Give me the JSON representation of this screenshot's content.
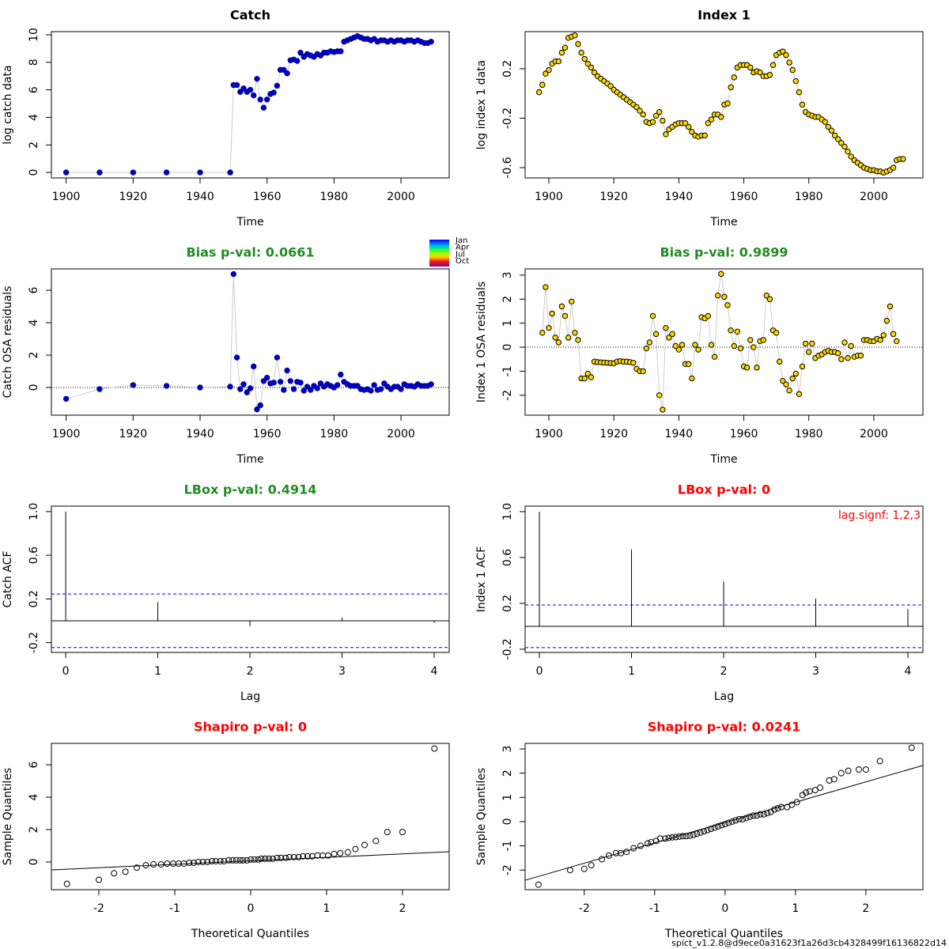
{
  "chart_data": [
    {
      "type": "line",
      "title": "Catch",
      "xlabel": "Time",
      "ylabel": "log catch data",
      "color": "#0000cd",
      "edge_color": "#00008b",
      "line_color": "#cccccc",
      "x": [
        1900,
        1910,
        1920,
        1930,
        1940,
        1949,
        1950,
        1951,
        1952,
        1953,
        1954,
        1955,
        1956,
        1957,
        1958,
        1959,
        1960,
        1961,
        1962,
        1963,
        1964,
        1965,
        1966,
        1967,
        1968,
        1969,
        1970,
        1971,
        1972,
        1973,
        1974,
        1975,
        1976,
        1977,
        1978,
        1979,
        1980,
        1981,
        1982,
        1983,
        1984,
        1985,
        1986,
        1987,
        1988,
        1989,
        1990,
        1991,
        1992,
        1993,
        1994,
        1995,
        1996,
        1997,
        1998,
        1999,
        2000,
        2001,
        2002,
        2003,
        2004,
        2005,
        2006,
        2007,
        2008,
        2009
      ],
      "values": [
        0,
        0,
        0,
        0,
        0,
        0,
        6.35,
        6.35,
        5.85,
        6.1,
        5.85,
        6.0,
        5.6,
        6.8,
        5.3,
        4.7,
        5.3,
        5.7,
        5.8,
        6.3,
        7.45,
        7.45,
        7.2,
        8.15,
        8.2,
        8.1,
        8.7,
        8.4,
        8.6,
        8.5,
        8.4,
        8.6,
        8.5,
        8.7,
        8.7,
        8.8,
        8.75,
        8.8,
        8.8,
        9.5,
        9.6,
        9.7,
        9.8,
        9.9,
        9.8,
        9.7,
        9.7,
        9.6,
        9.7,
        9.5,
        9.6,
        9.6,
        9.5,
        9.6,
        9.5,
        9.6,
        9.6,
        9.5,
        9.6,
        9.6,
        9.5,
        9.6,
        9.5,
        9.4,
        9.4,
        9.5
      ],
      "xlim": [
        1895.6,
        2014.4
      ],
      "ylim": [
        -0.4,
        10.23
      ],
      "xticks": [
        1900,
        1920,
        1940,
        1960,
        1980,
        2000
      ],
      "yticks": [
        0,
        2,
        4,
        6,
        8,
        10
      ]
    },
    {
      "type": "line",
      "title": "Index 1",
      "xlabel": "Time",
      "ylabel": "log index 1 data",
      "color": "#ffd700",
      "edge_color": "#000000",
      "line_color": "#cccccc",
      "x": [
        1897,
        1898,
        1899,
        1900,
        1901,
        1902,
        1903,
        1904,
        1905,
        1906,
        1907,
        1908,
        1909,
        1910,
        1911,
        1912,
        1913,
        1914,
        1915,
        1916,
        1917,
        1918,
        1919,
        1920,
        1921,
        1922,
        1923,
        1924,
        1925,
        1926,
        1927,
        1928,
        1929,
        1930,
        1931,
        1932,
        1933,
        1934,
        1935,
        1936,
        1937,
        1938,
        1939,
        1940,
        1941,
        1942,
        1943,
        1944,
        1945,
        1946,
        1947,
        1948,
        1949,
        1950,
        1951,
        1952,
        1953,
        1954,
        1955,
        1956,
        1957,
        1958,
        1959,
        1960,
        1961,
        1962,
        1963,
        1964,
        1965,
        1966,
        1967,
        1968,
        1969,
        1970,
        1971,
        1972,
        1973,
        1974,
        1975,
        1976,
        1977,
        1978,
        1979,
        1980,
        1981,
        1982,
        1983,
        1984,
        1985,
        1986,
        1987,
        1988,
        1989,
        1990,
        1991,
        1992,
        1993,
        1994,
        1995,
        1996,
        1997,
        1998,
        1999,
        2000,
        2001,
        2002,
        2003,
        2004,
        2005,
        2006,
        2007,
        2008,
        2009
      ],
      "values": [
        0.01,
        0.07,
        0.16,
        0.19,
        0.24,
        0.26,
        0.26,
        0.33,
        0.37,
        0.45,
        0.46,
        0.47,
        0.4,
        0.33,
        0.28,
        0.24,
        0.21,
        0.17,
        0.14,
        0.12,
        0.1,
        0.08,
        0.06,
        0.03,
        0.01,
        -0.01,
        -0.03,
        -0.05,
        -0.07,
        -0.09,
        -0.11,
        -0.14,
        -0.17,
        -0.23,
        -0.24,
        -0.23,
        -0.18,
        -0.15,
        -0.22,
        -0.33,
        -0.29,
        -0.27,
        -0.25,
        -0.24,
        -0.24,
        -0.24,
        -0.27,
        -0.31,
        -0.34,
        -0.35,
        -0.34,
        -0.34,
        -0.24,
        -0.21,
        -0.17,
        -0.17,
        -0.19,
        -0.09,
        -0.08,
        0.05,
        0.13,
        0.21,
        0.23,
        0.23,
        0.23,
        0.21,
        0.17,
        0.18,
        0.17,
        0.14,
        0.14,
        0.15,
        0.23,
        0.31,
        0.33,
        0.34,
        0.31,
        0.25,
        0.19,
        0.1,
        0.01,
        -0.09,
        -0.15,
        -0.17,
        -0.18,
        -0.19,
        -0.19,
        -0.21,
        -0.23,
        -0.27,
        -0.3,
        -0.34,
        -0.37,
        -0.4,
        -0.43,
        -0.47,
        -0.51,
        -0.54,
        -0.56,
        -0.58,
        -0.6,
        -0.61,
        -0.62,
        -0.62,
        -0.63,
        -0.63,
        -0.64,
        -0.63,
        -0.62,
        -0.6,
        -0.54,
        -0.53,
        -0.53
      ],
      "xlim": [
        1892.7,
        2015.1
      ],
      "ylim": [
        -0.683,
        0.5
      ],
      "xticks": [
        1900,
        1920,
        1940,
        1960,
        1980,
        2000
      ],
      "yticks": [
        -0.6,
        -0.2,
        0.2
      ]
    },
    {
      "type": "line",
      "title": "Bias p-val: 0.0661",
      "title_color": "#228b22",
      "xlabel": "Time",
      "ylabel": "Catch OSA residuals",
      "color": "#0000cd",
      "edge_color": "#00008b",
      "line_color": "#cccccc",
      "reference_line": 0,
      "legend": [
        "Jan",
        "Apr",
        "Jul",
        "Oct"
      ],
      "x": [
        1900,
        1910,
        1920,
        1930,
        1940,
        1949,
        1950,
        1951,
        1952,
        1953,
        1954,
        1955,
        1956,
        1957,
        1958,
        1959,
        1960,
        1961,
        1962,
        1963,
        1964,
        1965,
        1966,
        1967,
        1968,
        1969,
        1970,
        1971,
        1972,
        1973,
        1974,
        1975,
        1976,
        1977,
        1978,
        1979,
        1980,
        1981,
        1982,
        1983,
        1984,
        1985,
        1986,
        1987,
        1988,
        1989,
        1990,
        1991,
        1992,
        1993,
        1994,
        1995,
        1996,
        1997,
        1998,
        1999,
        2000,
        2001,
        2002,
        2003,
        2004,
        2005,
        2006,
        2007,
        2008,
        2009
      ],
      "values": [
        -0.7,
        -0.1,
        0.15,
        0.1,
        0,
        0.05,
        7.0,
        1.85,
        -0.1,
        0.2,
        -0.3,
        -0.05,
        1.3,
        -1.35,
        -1.1,
        0.4,
        0.6,
        0.25,
        0.3,
        1.85,
        0.35,
        -0.15,
        1.05,
        0.4,
        -0.1,
        0.35,
        0.3,
        -0.2,
        0.05,
        -0.15,
        0.1,
        -0.05,
        0.25,
        0.05,
        0.2,
        0.1,
        0,
        0.15,
        0.8,
        0.35,
        0.2,
        0.1,
        0.1,
        0.1,
        -0.1,
        -0.15,
        -0.1,
        -0.2,
        0.15,
        -0.15,
        -0.1,
        0.25,
        0.05,
        -0.1,
        0.05,
        0.05,
        -0.1,
        0.2,
        0.1,
        0.1,
        0.05,
        0.2,
        0.1,
        0.1,
        0.1,
        0.2
      ],
      "xlim": [
        1895.6,
        2014.4
      ],
      "ylim": [
        -1.71,
        7.32
      ],
      "xticks": [
        1900,
        1920,
        1940,
        1960,
        1980,
        2000
      ],
      "yticks": [
        0,
        2,
        4,
        6
      ]
    },
    {
      "type": "line",
      "title": "Bias p-val: 0.9899",
      "title_color": "#228b22",
      "xlabel": "Time",
      "ylabel": "Index 1 OSA residuals",
      "color": "#ffd700",
      "edge_color": "#000000",
      "line_color": "#cccccc",
      "reference_line": 0,
      "x": [
        1898,
        1899,
        1900,
        1901,
        1902,
        1903,
        1904,
        1905,
        1906,
        1907,
        1908,
        1909,
        1910,
        1911,
        1912,
        1913,
        1914,
        1915,
        1916,
        1917,
        1918,
        1919,
        1920,
        1921,
        1922,
        1923,
        1924,
        1925,
        1926,
        1927,
        1928,
        1929,
        1930,
        1931,
        1932,
        1933,
        1934,
        1935,
        1936,
        1937,
        1938,
        1939,
        1940,
        1941,
        1942,
        1943,
        1944,
        1945,
        1946,
        1947,
        1948,
        1949,
        1950,
        1951,
        1952,
        1953,
        1954,
        1955,
        1956,
        1957,
        1958,
        1959,
        1960,
        1961,
        1962,
        1963,
        1964,
        1965,
        1966,
        1967,
        1968,
        1969,
        1970,
        1971,
        1972,
        1973,
        1974,
        1975,
        1976,
        1977,
        1978,
        1979,
        1980,
        1981,
        1982,
        1983,
        1984,
        1985,
        1986,
        1987,
        1988,
        1989,
        1990,
        1991,
        1992,
        1993,
        1994,
        1995,
        1996,
        1997,
        1998,
        1999,
        2000,
        2001,
        2002,
        2003,
        2004,
        2005,
        2006,
        2007
      ],
      "values": [
        0.6,
        2.5,
        0.8,
        1.4,
        0.4,
        0.2,
        1.7,
        1.3,
        0.4,
        1.9,
        0.6,
        0.3,
        -1.3,
        -1.3,
        -1.1,
        -1.25,
        -0.6,
        -0.62,
        -0.63,
        -0.64,
        -0.65,
        -0.66,
        -0.67,
        -0.6,
        -0.58,
        -0.6,
        -0.6,
        -0.62,
        -0.65,
        -0.9,
        -1.0,
        -1.0,
        -0.05,
        0.2,
        1.3,
        0.55,
        -2.0,
        -2.6,
        0.8,
        0.4,
        0.55,
        0.05,
        -0.1,
        0.1,
        -0.7,
        -0.7,
        -1.3,
        0.1,
        -0.1,
        1.25,
        1.2,
        1.3,
        0.1,
        -0.4,
        2.15,
        3.05,
        2.1,
        1.75,
        0.7,
        0.05,
        0.65,
        -0.05,
        -0.8,
        -0.85,
        0.3,
        0.0,
        -0.85,
        0.25,
        0.3,
        2.15,
        2.0,
        0.7,
        0.6,
        -0.6,
        -1.4,
        -1.55,
        -1.8,
        -1.3,
        -1.1,
        -1.95,
        -0.8,
        0.15,
        -0.2,
        0.15,
        -0.45,
        -0.35,
        -0.3,
        -0.2,
        -0.15,
        -0.2,
        -0.2,
        -0.25,
        -0.5,
        0.2,
        -0.45,
        0.05,
        -0.4,
        -0.35,
        -0.35,
        0.3,
        0.3,
        0.25,
        0.25,
        0.35,
        0.3,
        0.5,
        1.1,
        1.7,
        0.55,
        0.25
      ],
      "xlim": [
        1892.7,
        2015.1
      ],
      "ylim": [
        -2.83,
        3.26
      ],
      "xticks": [
        1900,
        1920,
        1940,
        1960,
        1980,
        2000
      ],
      "yticks": [
        -2,
        -1,
        0,
        1,
        2,
        3
      ]
    },
    {
      "type": "stem",
      "title": "LBox p-val: 0.4914",
      "title_color": "#228b22",
      "xlabel": "Lag",
      "ylabel": "Catch ACF",
      "reference_line": 0,
      "ci_bounds": [
        0.245,
        -0.245
      ],
      "ci_color": "#0000ff",
      "x": [
        0,
        1,
        2,
        3,
        4
      ],
      "values": [
        1.0,
        0.17,
        -0.05,
        0.03,
        -0.02
      ],
      "xlim": [
        -0.155,
        4.163
      ],
      "ylim": [
        -0.29,
        1.05
      ],
      "xticks": [
        0,
        1,
        2,
        3,
        4
      ],
      "yticks": [
        -0.2,
        0.2,
        0.6,
        {
          "value": 1,
          "label": "1.0"
        }
      ]
    },
    {
      "type": "stem",
      "title": "LBox p-val: 0",
      "title_color": "#ff0000",
      "xlabel": "Lag",
      "ylabel": "Index 1 ACF",
      "reference_line": 0,
      "ci_bounds": [
        0.186,
        -0.186
      ],
      "ci_color": "#0000ff",
      "annotation": "lag.signf: 1,2,3",
      "x": [
        0,
        1,
        2,
        3,
        4
      ],
      "values": [
        1.0,
        0.67,
        0.39,
        0.24,
        0.15
      ],
      "xlim": [
        -0.155,
        4.163
      ],
      "ylim": [
        -0.228,
        1.048
      ],
      "xticks": [
        0,
        1,
        2,
        3,
        4
      ],
      "yticks": [
        -0.2,
        0.2,
        0.6,
        {
          "value": 1,
          "label": "1.0"
        }
      ]
    },
    {
      "type": "scatter",
      "title": "Shapiro p-val: 0",
      "title_color": "#ff0000",
      "xlabel": "Theoretical Quantiles",
      "ylabel": "Sample Quantiles",
      "x": [
        -2.42,
        -2.0,
        -1.8,
        -1.65,
        -1.5,
        -1.38,
        -1.28,
        -1.18,
        -1.1,
        -1.02,
        -0.95,
        -0.88,
        -0.81,
        -0.75,
        -0.69,
        -0.63,
        -0.57,
        -0.51,
        -0.46,
        -0.4,
        -0.35,
        -0.29,
        -0.24,
        -0.19,
        -0.14,
        -0.1,
        -0.05,
        0,
        0.05,
        0.1,
        0.14,
        0.19,
        0.24,
        0.29,
        0.35,
        0.4,
        0.46,
        0.51,
        0.57,
        0.63,
        0.69,
        0.75,
        0.81,
        0.88,
        0.95,
        1.02,
        1.1,
        1.18,
        1.28,
        1.38,
        1.5,
        1.65,
        1.8,
        2.0,
        2.42
      ],
      "values": [
        -1.35,
        -1.1,
        -0.7,
        -0.6,
        -0.35,
        -0.2,
        -0.15,
        -0.15,
        -0.1,
        -0.1,
        -0.1,
        -0.1,
        -0.05,
        -0.05,
        0,
        0,
        0,
        0.05,
        0.05,
        0.05,
        0.05,
        0.1,
        0.1,
        0.1,
        0.1,
        0.1,
        0.1,
        0.15,
        0.15,
        0.15,
        0.2,
        0.2,
        0.2,
        0.2,
        0.25,
        0.25,
        0.25,
        0.3,
        0.3,
        0.3,
        0.35,
        0.35,
        0.35,
        0.4,
        0.4,
        0.4,
        0.5,
        0.55,
        0.6,
        0.8,
        1.05,
        1.3,
        1.85,
        1.85,
        7.0
      ],
      "line": {
        "x": [
          -2.625,
          2.615
        ],
        "y": [
          -0.49,
          0.63
        ]
      },
      "xlim": [
        -2.625,
        2.615
      ],
      "ylim": [
        -1.71,
        7.32
      ],
      "xticks": [
        -2,
        -1,
        0,
        1,
        2
      ],
      "yticks": [
        0,
        2,
        4,
        6
      ]
    },
    {
      "type": "scatter",
      "title": "Shapiro p-val: 0.0241",
      "title_color": "#ff0000",
      "xlabel": "Theoretical Quantiles",
      "ylabel": "Sample Quantiles",
      "x": [
        -2.65,
        -2.2,
        -2.0,
        -1.9,
        -1.75,
        -1.65,
        -1.55,
        -1.48,
        -1.4,
        -1.3,
        -1.2,
        -1.1,
        -1.05,
        -0.98,
        -0.92,
        -0.85,
        -0.8,
        -0.75,
        -0.7,
        -0.65,
        -0.6,
        -0.55,
        -0.5,
        -0.45,
        -0.4,
        -0.35,
        -0.3,
        -0.25,
        -0.2,
        -0.15,
        -0.1,
        -0.05,
        0,
        0.05,
        0.1,
        0.15,
        0.2,
        0.25,
        0.3,
        0.35,
        0.4,
        0.45,
        0.5,
        0.55,
        0.6,
        0.65,
        0.7,
        0.75,
        0.8,
        0.88,
        0.95,
        1.02,
        1.1,
        1.15,
        1.2,
        1.28,
        1.35,
        1.48,
        1.55,
        1.65,
        1.75,
        1.9,
        2.0,
        2.2,
        2.65
      ],
      "values": [
        -2.6,
        -2.0,
        -1.95,
        -1.8,
        -1.55,
        -1.4,
        -1.3,
        -1.3,
        -1.25,
        -1.1,
        -1.0,
        -0.9,
        -0.85,
        -0.8,
        -0.7,
        -0.7,
        -0.67,
        -0.65,
        -0.64,
        -0.62,
        -0.6,
        -0.6,
        -0.58,
        -0.55,
        -0.5,
        -0.45,
        -0.4,
        -0.35,
        -0.3,
        -0.25,
        -0.2,
        -0.15,
        -0.1,
        -0.05,
        0,
        0.05,
        0.1,
        0.1,
        0.15,
        0.2,
        0.25,
        0.25,
        0.3,
        0.3,
        0.35,
        0.4,
        0.5,
        0.55,
        0.6,
        0.6,
        0.7,
        0.8,
        1.1,
        1.2,
        1.25,
        1.3,
        1.4,
        1.7,
        1.75,
        2.0,
        2.1,
        2.15,
        2.15,
        2.5,
        3.05
      ],
      "line": {
        "x": [
          -2.84,
          2.81
        ],
        "y": [
          -2.42,
          2.32
        ]
      },
      "xlim": [
        -2.84,
        2.81
      ],
      "ylim": [
        -2.81,
        3.23
      ],
      "xticks": [
        -2,
        -1,
        0,
        1,
        2
      ],
      "yticks": [
        -2,
        -1,
        0,
        1,
        2,
        3
      ]
    }
  ],
  "footer": "spict_v1.2.8@d9ece0a31623f1a26d3cb4328499f16136822d14"
}
